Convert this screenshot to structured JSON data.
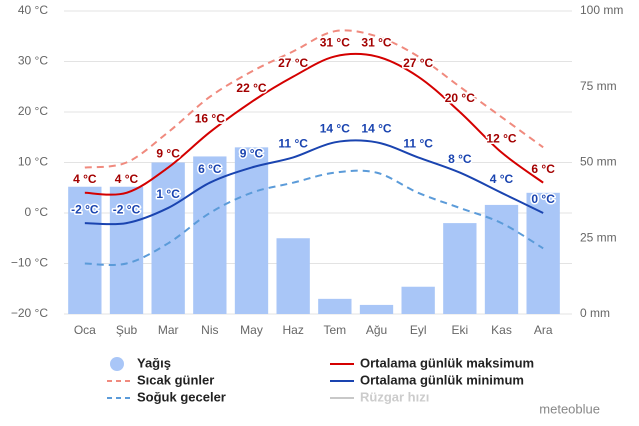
{
  "chart_data": {
    "type": "bar-line",
    "categories": [
      "Oca",
      "Şub",
      "Mar",
      "Nis",
      "May",
      "Haz",
      "Tem",
      "Ağu",
      "Eyl",
      "Eki",
      "Kas",
      "Ara"
    ],
    "ylim": [
      -20,
      40
    ],
    "yticks": [
      {
        "value": -20,
        "label": "−20 °C"
      },
      {
        "value": -10,
        "label": "−10 °C"
      },
      {
        "value": 0,
        "label": "0 °C"
      },
      {
        "value": 10,
        "label": "10 °C"
      },
      {
        "value": 20,
        "label": "20 °C"
      },
      {
        "value": 30,
        "label": "30 °C"
      },
      {
        "value": 40,
        "label": "40 °C"
      }
    ],
    "y2lim": [
      0,
      100
    ],
    "y2ticks": [
      {
        "value": 0,
        "label": "0 mm"
      },
      {
        "value": 25,
        "label": "25 mm"
      },
      {
        "value": 50,
        "label": "50 mm"
      },
      {
        "value": 75,
        "label": "75 mm"
      },
      {
        "value": 100,
        "label": "100 mm"
      }
    ],
    "grid": true,
    "series": [
      {
        "name": "Yağış",
        "type": "bar",
        "axis": "y2",
        "color": "#a9c6f7",
        "values": [
          42,
          42,
          50,
          52,
          55,
          25,
          5,
          3,
          9,
          30,
          36,
          40
        ]
      },
      {
        "name": "Sıcak günler",
        "type": "line",
        "dashed": true,
        "color": "#f08a7e",
        "values": [
          9,
          10,
          16,
          23,
          28,
          32,
          36,
          35,
          31,
          25,
          19,
          13
        ]
      },
      {
        "name": "Soğuk geceler",
        "type": "line",
        "dashed": true,
        "color": "#5b9bd9",
        "values": [
          -10,
          -10,
          -6,
          0,
          4,
          6,
          8,
          8,
          4,
          1,
          -2,
          -7
        ]
      },
      {
        "name": "Ortalama günlük maksimum",
        "type": "line",
        "color": "#d40000",
        "label_color": "#a30000",
        "values": [
          4,
          4,
          9,
          16,
          22,
          27,
          31,
          31,
          27,
          20,
          12,
          6
        ],
        "value_labels": [
          "4 °C",
          "4 °C",
          "9 °C",
          "16 °C",
          "22 °C",
          "27 °C",
          "31 °C",
          "31 °C",
          "27 °C",
          "20 °C",
          "12 °C",
          "6 °C"
        ]
      },
      {
        "name": "Ortalama günlük minimum",
        "type": "line",
        "color": "#1a44b0",
        "label_color": "#1a44b0",
        "values": [
          -2,
          -2,
          1,
          6,
          9,
          11,
          14,
          14,
          11,
          8,
          4,
          0
        ],
        "value_labels": [
          "-2 °C",
          "-2 °C",
          "1 °C",
          "6 °C",
          "9 °C",
          "11 °C",
          "14 °C",
          "14 °C",
          "11 °C",
          "8 °C",
          "4 °C",
          "0 °C"
        ]
      },
      {
        "name": "Rüzgar hızı",
        "type": "line",
        "visible": false,
        "color": "#c8c8c8"
      }
    ],
    "credit": "meteoblue"
  }
}
